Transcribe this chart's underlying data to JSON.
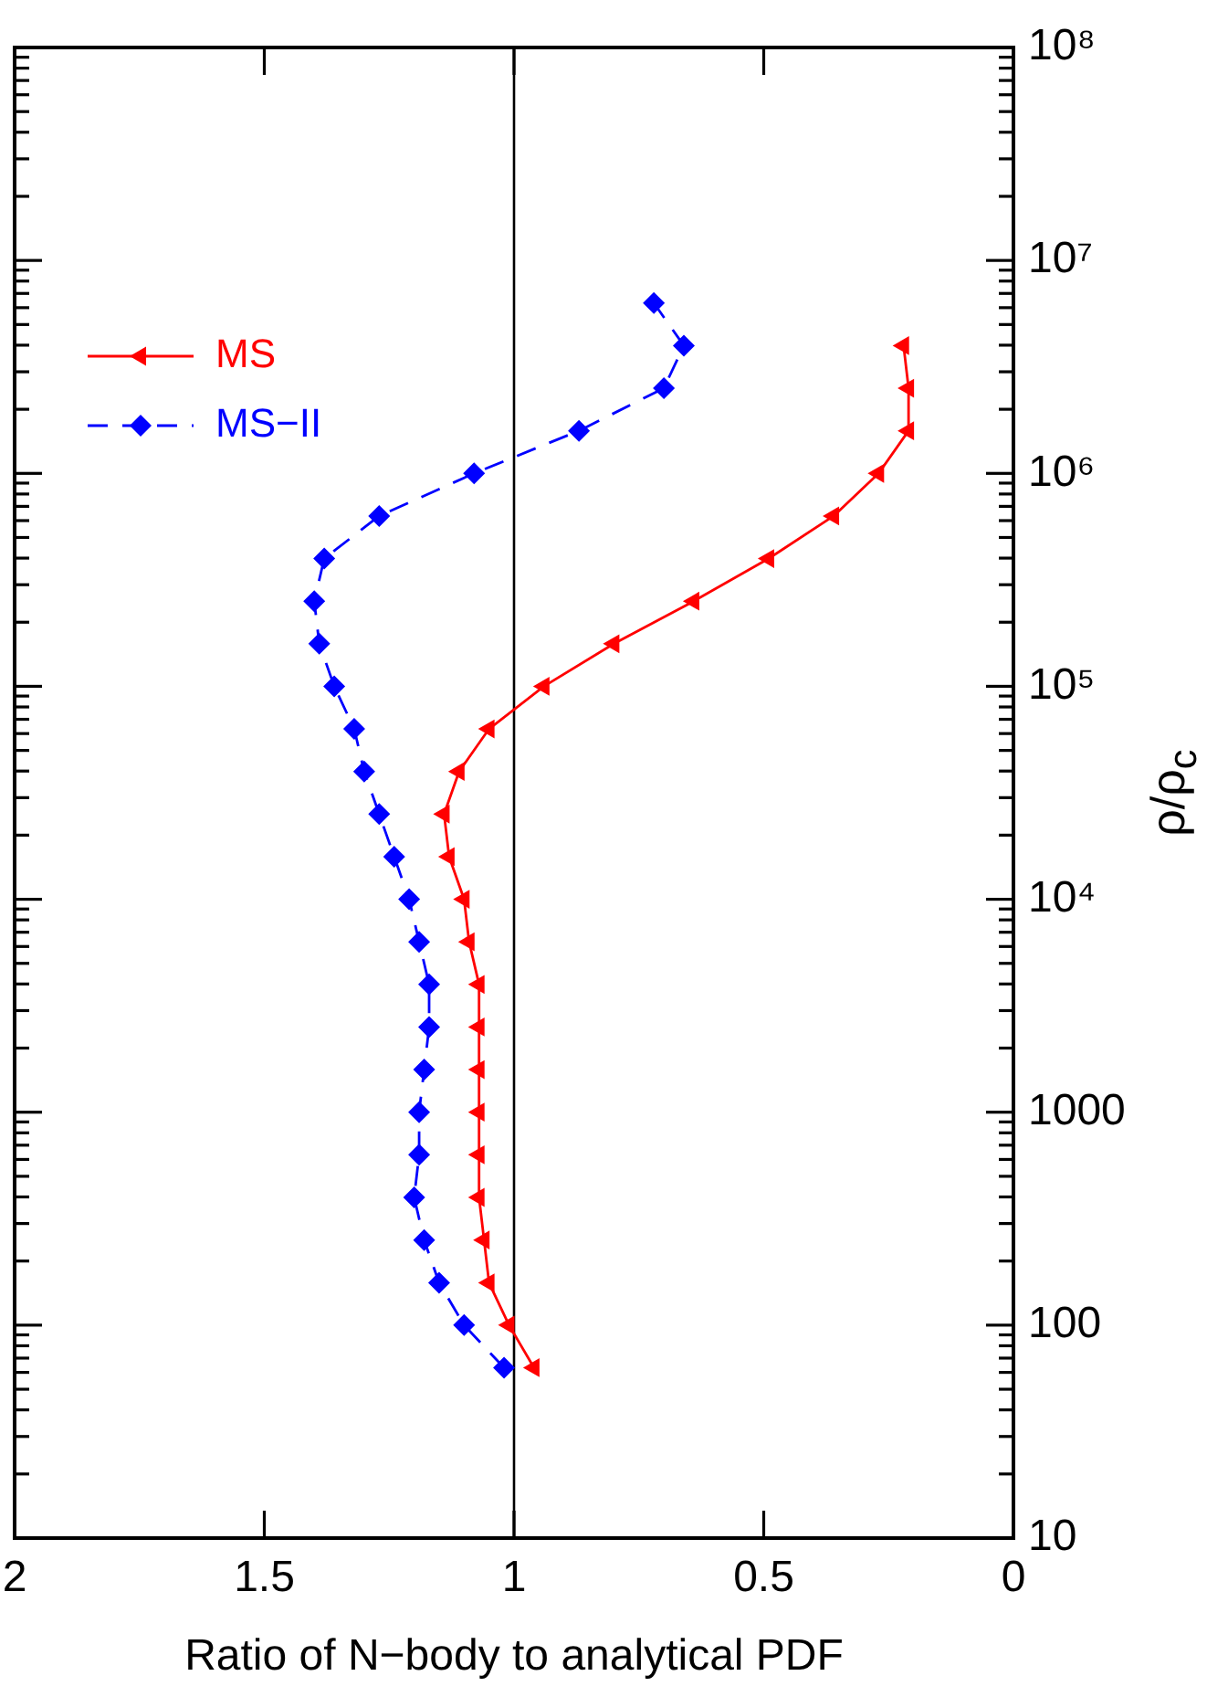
{
  "chart_data": {
    "type": "line",
    "xlabel": "Ratio of N−body to analytical PDF",
    "ylabel": "ρ/ρ$_{c}$",
    "log": "y",
    "legend": "top left",
    "xlim": [
      2,
      0
    ],
    "xticks": [
      0,
      0.5,
      1,
      1.5,
      2
    ],
    "ylim": [
      10,
      100000000
    ],
    "yticks": [
      10,
      {
        "value": 20,
        "label": null
      },
      {
        "value": 30,
        "label": null
      },
      {
        "value": 40,
        "label": null
      },
      {
        "value": 50,
        "label": null
      },
      {
        "value": 60,
        "label": null
      },
      {
        "value": 70,
        "label": null
      },
      {
        "value": 80,
        "label": null
      },
      {
        "value": 90,
        "label": null
      },
      100,
      {
        "value": 200,
        "label": null
      },
      {
        "value": 300,
        "label": null
      },
      {
        "value": 400,
        "label": null
      },
      {
        "value": 500,
        "label": null
      },
      {
        "value": 600,
        "label": null
      },
      {
        "value": 700,
        "label": null
      },
      {
        "value": 800,
        "label": null
      },
      {
        "value": 900,
        "label": null
      },
      1000,
      {
        "value": 2000,
        "label": null
      },
      {
        "value": 3000,
        "label": null
      },
      {
        "value": 4000,
        "label": null
      },
      {
        "value": 5000,
        "label": null
      },
      {
        "value": 6000,
        "label": null
      },
      {
        "value": 7000,
        "label": null
      },
      {
        "value": 8000,
        "label": null
      },
      {
        "value": 9000,
        "label": null
      },
      {
        "value": 10000,
        "label": "10⁴"
      },
      {
        "value": 20000,
        "label": null
      },
      {
        "value": 30000,
        "label": null
      },
      {
        "value": 40000,
        "label": null
      },
      {
        "value": 50000,
        "label": null
      },
      {
        "value": 60000,
        "label": null
      },
      {
        "value": 70000,
        "label": null
      },
      {
        "value": 80000,
        "label": null
      },
      {
        "value": 90000,
        "label": null
      },
      {
        "value": 100000,
        "label": "10⁵"
      },
      {
        "value": 200000,
        "label": null
      },
      {
        "value": 300000,
        "label": null
      },
      {
        "value": 400000,
        "label": null
      },
      {
        "value": 500000,
        "label": null
      },
      {
        "value": 600000,
        "label": null
      },
      {
        "value": 700000,
        "label": null
      },
      {
        "value": 800000,
        "label": null
      },
      {
        "value": 900000,
        "label": null
      },
      {
        "value": 1000000,
        "label": "10⁶"
      },
      {
        "value": 2000000,
        "label": null
      },
      {
        "value": 3000000,
        "label": null
      },
      {
        "value": 4000000,
        "label": null
      },
      {
        "value": 5000000,
        "label": null
      },
      {
        "value": 6000000,
        "label": null
      },
      {
        "value": 7000000,
        "label": null
      },
      {
        "value": 8000000,
        "label": null
      },
      {
        "value": 9000000,
        "label": null
      },
      {
        "value": 10000000,
        "label": "10⁷"
      },
      {
        "value": 20000000,
        "label": null
      },
      {
        "value": 30000000,
        "label": null
      },
      {
        "value": 40000000,
        "label": null
      },
      {
        "value": 50000000,
        "label": null
      },
      {
        "value": 60000000,
        "label": null
      },
      {
        "value": 70000000,
        "label": null
      },
      {
        "value": 80000000,
        "label": null
      },
      {
        "value": 90000000,
        "label": null
      },
      {
        "value": 100000000,
        "label": "10⁸"
      }
    ],
    "ref_lines": [
      {
        "axis": "x",
        "value": 1,
        "color": "#000000"
      }
    ],
    "series": [
      {
        "name": "MS",
        "color": "#ff0000",
        "marker": "triangle",
        "line_style": "solid",
        "x": [
          0.96,
          1.01,
          1.05,
          1.06,
          1.07,
          1.07,
          1.07,
          1.07,
          1.07,
          1.07,
          1.09,
          1.1,
          1.13,
          1.14,
          1.11,
          1.05,
          0.94,
          0.8,
          0.64,
          0.49,
          0.36,
          0.27,
          0.21,
          0.21,
          0.22
        ],
        "values": [
          63.1,
          100,
          158,
          251,
          398,
          631,
          1000,
          1585,
          2512,
          3981,
          6310,
          10000,
          15850,
          25120,
          39810,
          63100,
          100000,
          158500,
          251200,
          398100,
          631000,
          1000000,
          1585000,
          2512000,
          3981000
        ]
      },
      {
        "name": "MS−II",
        "color": "#0000ff",
        "marker": "diamond",
        "line_style": "dashed",
        "x": [
          1.02,
          1.1,
          1.15,
          1.18,
          1.2,
          1.19,
          1.19,
          1.18,
          1.17,
          1.17,
          1.19,
          1.21,
          1.24,
          1.27,
          1.3,
          1.32,
          1.36,
          1.39,
          1.4,
          1.38,
          1.27,
          1.08,
          0.87,
          0.7,
          0.66,
          0.72
        ],
        "values": [
          63.1,
          100,
          158,
          251,
          398,
          631,
          1000,
          1585,
          2512,
          3981,
          6310,
          10000,
          15850,
          25120,
          39810,
          63100,
          100000,
          158500,
          251200,
          398100,
          631000,
          1000000,
          1585000,
          2512000,
          3981000,
          6310000
        ]
      }
    ]
  }
}
